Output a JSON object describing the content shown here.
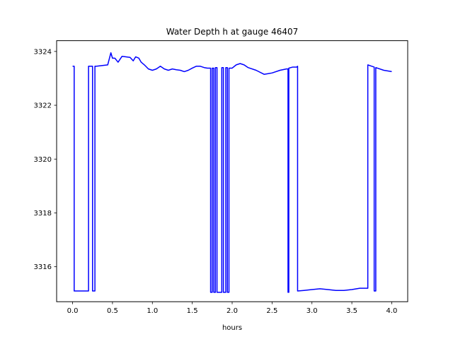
{
  "chart_data": {
    "type": "line",
    "title": "Water Depth h at gauge 46407",
    "xlabel": "hours",
    "ylabel": "",
    "xlim": [
      -0.2,
      4.2
    ],
    "ylim": [
      3314.7,
      3324.4
    ],
    "grid": false,
    "line_color": "#0000ff",
    "xticks": [
      0.0,
      0.5,
      1.0,
      1.5,
      2.0,
      2.5,
      3.0,
      3.5,
      4.0
    ],
    "xtick_labels": [
      "0.0",
      "0.5",
      "1.0",
      "1.5",
      "2.0",
      "2.5",
      "3.0",
      "3.5",
      "4.0"
    ],
    "yticks": [
      3316,
      3318,
      3320,
      3322,
      3324
    ],
    "ytick_labels": [
      "3316",
      "3318",
      "3320",
      "3322",
      "3324"
    ],
    "series": [
      {
        "name": "",
        "x": [
          0.0,
          0.02,
          0.02,
          0.2,
          0.2,
          0.25,
          0.25,
          0.28,
          0.28,
          0.3,
          0.3,
          0.44,
          0.48,
          0.5,
          0.53,
          0.57,
          0.62,
          0.67,
          0.72,
          0.76,
          0.79,
          0.83,
          0.86,
          0.9,
          0.95,
          1.0,
          1.05,
          1.1,
          1.15,
          1.2,
          1.25,
          1.3,
          1.35,
          1.4,
          1.45,
          1.5,
          1.55,
          1.6,
          1.65,
          1.69,
          1.73,
          1.73,
          1.75,
          1.75,
          1.77,
          1.77,
          1.79,
          1.79,
          1.81,
          1.81,
          1.87,
          1.87,
          1.89,
          1.89,
          1.92,
          1.92,
          1.94,
          1.94,
          1.96,
          1.96,
          2.0,
          2.05,
          2.1,
          2.15,
          2.2,
          2.3,
          2.4,
          2.5,
          2.6,
          2.68,
          2.7,
          2.7,
          2.71,
          2.71,
          2.76,
          2.81,
          2.82,
          2.82,
          2.9,
          3.0,
          3.1,
          3.2,
          3.3,
          3.4,
          3.5,
          3.6,
          3.7,
          3.7,
          3.75,
          3.78,
          3.78,
          3.8,
          3.8,
          3.9,
          4.0
        ],
        "y": [
          3323.45,
          3323.45,
          3315.1,
          3315.1,
          3323.45,
          3323.45,
          3315.1,
          3315.1,
          3323.45,
          3323.45,
          3323.45,
          3323.5,
          3323.95,
          3323.75,
          3323.75,
          3323.6,
          3323.82,
          3323.8,
          3323.78,
          3323.65,
          3323.8,
          3323.75,
          3323.6,
          3323.5,
          3323.35,
          3323.3,
          3323.35,
          3323.45,
          3323.35,
          3323.3,
          3323.35,
          3323.32,
          3323.3,
          3323.25,
          3323.3,
          3323.38,
          3323.45,
          3323.45,
          3323.4,
          3323.38,
          3323.38,
          3315.05,
          3315.05,
          3323.38,
          3323.38,
          3315.05,
          3315.05,
          3323.4,
          3323.4,
          3315.05,
          3315.05,
          3323.4,
          3323.4,
          3315.05,
          3315.05,
          3323.4,
          3323.4,
          3315.05,
          3315.05,
          3323.38,
          3323.38,
          3323.5,
          3323.55,
          3323.5,
          3323.4,
          3323.3,
          3323.15,
          3323.2,
          3323.3,
          3323.35,
          3323.35,
          3315.05,
          3315.05,
          3323.38,
          3323.42,
          3323.42,
          3323.45,
          3315.1,
          3315.12,
          3315.15,
          3315.18,
          3315.15,
          3315.12,
          3315.12,
          3315.15,
          3315.2,
          3315.2,
          3323.5,
          3323.45,
          3323.42,
          3315.1,
          3315.1,
          3323.4,
          3323.3,
          3323.25
        ]
      }
    ]
  }
}
